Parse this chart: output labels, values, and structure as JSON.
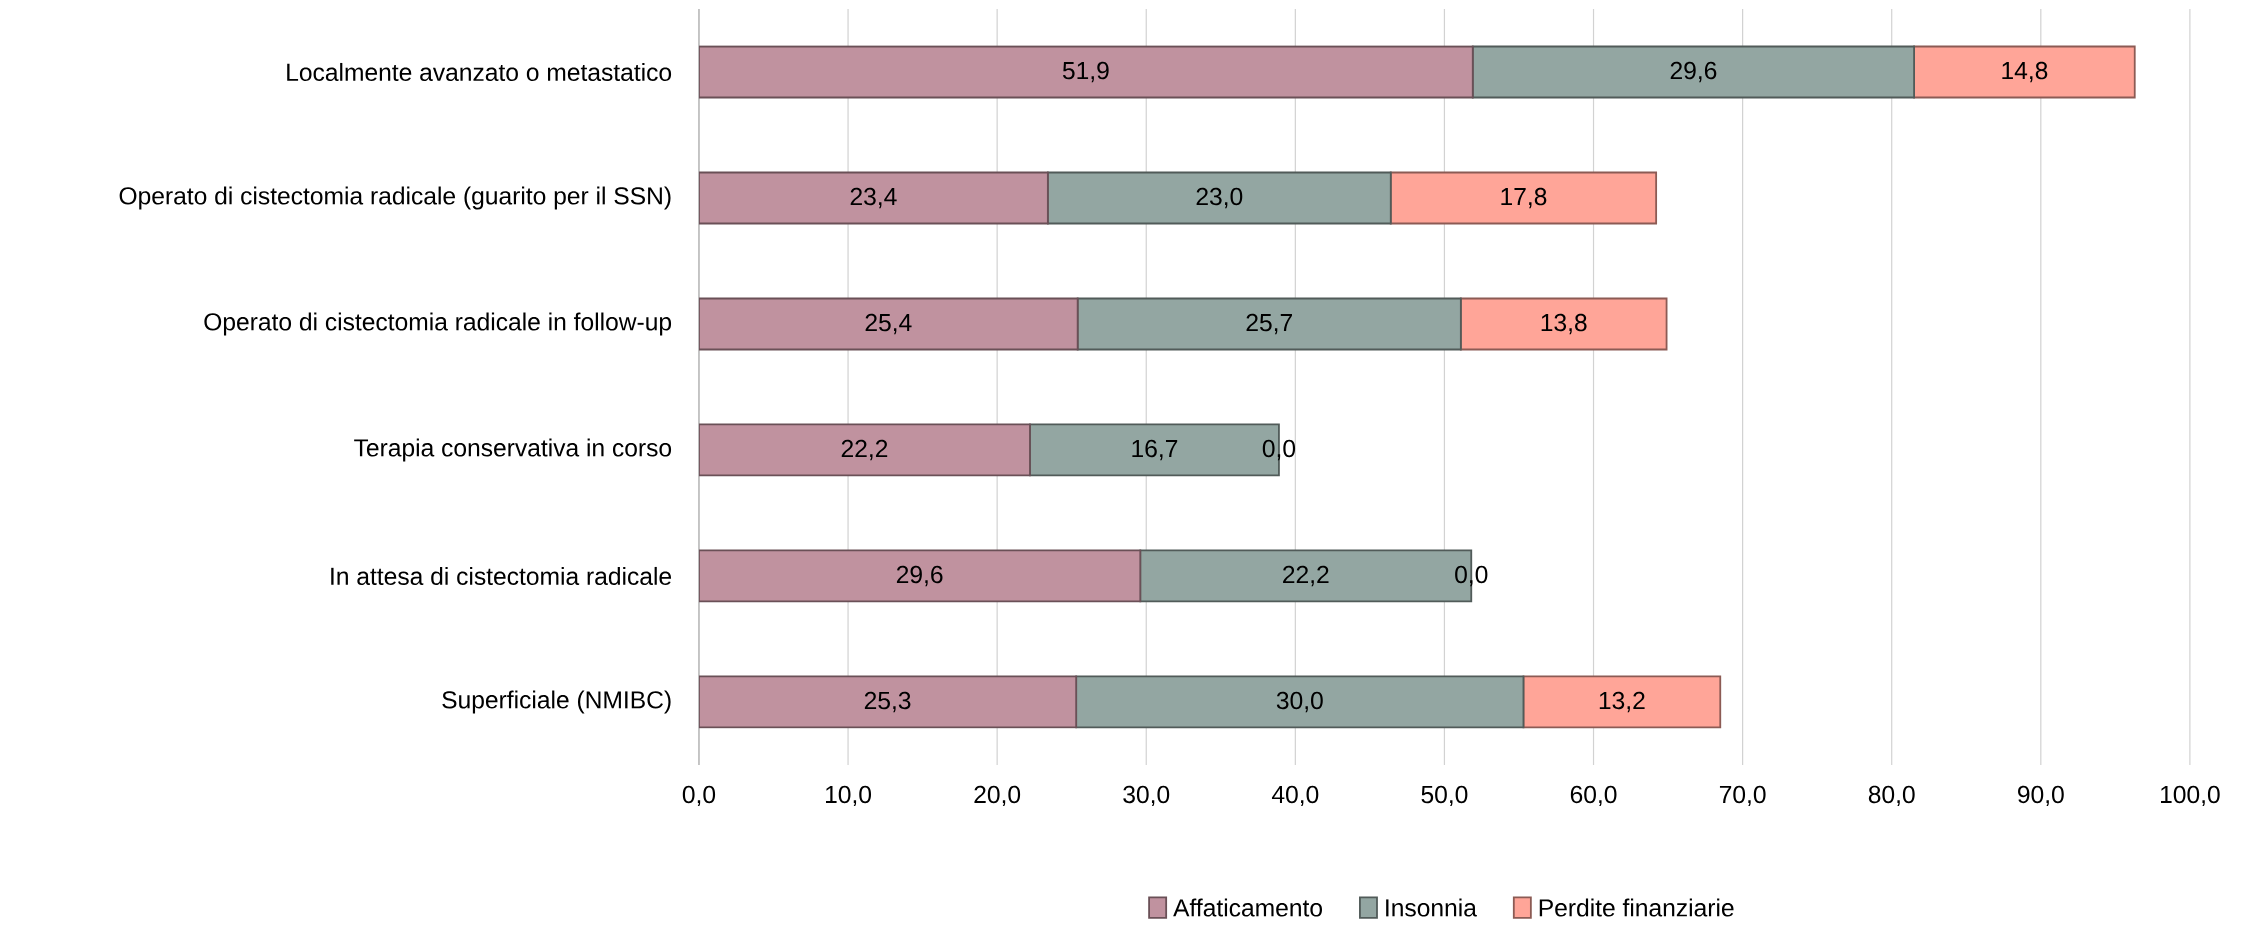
{
  "chart_data": {
    "type": "bar",
    "orientation": "horizontal",
    "stacked": true,
    "categories": [
      "Localmente avanzato o metastatico",
      "Operato di cistectomia radicale (guarito per il SSN)",
      "Operato di cistectomia radicale in follow-up",
      "Terapia conservativa in corso",
      "In attesa di cistectomia radicale",
      "Superficiale (NMIBC)"
    ],
    "series": [
      {
        "name": "Affaticamento",
        "color": "#c0929f",
        "values": [
          51.9,
          23.4,
          25.4,
          22.2,
          29.6,
          25.3
        ],
        "value_labels": [
          "51,9",
          "23,4",
          "25,4",
          "22,2",
          "29,6",
          "25,3"
        ]
      },
      {
        "name": "Insonnia",
        "color": "#93a6a2",
        "values": [
          29.6,
          23.0,
          25.7,
          16.7,
          22.2,
          30.0
        ],
        "value_labels": [
          "29,6",
          "23,0",
          "25,7",
          "16,7",
          "22,2",
          "30,0"
        ]
      },
      {
        "name": "Perdite finanziarie",
        "color": "#ffa598",
        "values": [
          14.8,
          17.8,
          13.8,
          0.0,
          0.0,
          13.2
        ],
        "value_labels": [
          "14,8",
          "17,8",
          "13,8",
          "0,0",
          "0,0",
          "13,2"
        ]
      }
    ],
    "xlim": [
      0,
      100
    ],
    "xticks": [
      {
        "value": 0,
        "label": "0,0"
      },
      {
        "value": 10,
        "label": "10,0"
      },
      {
        "value": 20,
        "label": "20,0"
      },
      {
        "value": 30,
        "label": "30,0"
      },
      {
        "value": 40,
        "label": "40,0"
      },
      {
        "value": 50,
        "label": "50,0"
      },
      {
        "value": 60,
        "label": "60,0"
      },
      {
        "value": 70,
        "label": "70,0"
      },
      {
        "value": 80,
        "label": "80,0"
      },
      {
        "value": 90,
        "label": "90,0"
      },
      {
        "value": 100,
        "label": "100,0"
      }
    ],
    "grid": "x",
    "legend": "bottom"
  }
}
